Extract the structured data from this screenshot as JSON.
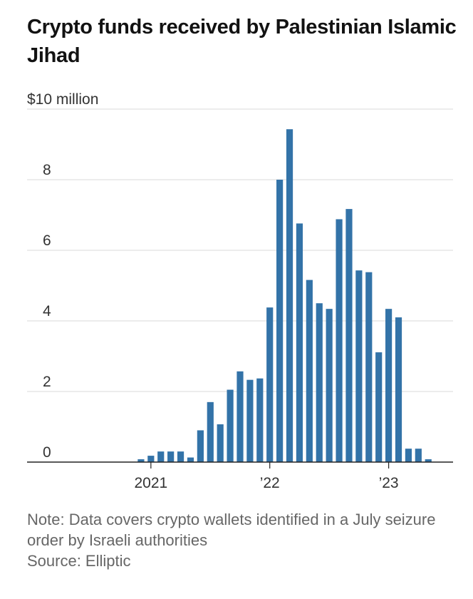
{
  "title": "Crypto funds received by Palestinian Islamic Jihad",
  "note": "Note: Data covers crypto wallets identified in a July seizure order by Israeli authorities",
  "source": "Source: Elliptic",
  "colors": {
    "bar": "#3373a8",
    "grid": "#d9d9d9",
    "axis": "#222222"
  },
  "chart_data": {
    "type": "bar",
    "title": "Crypto funds received by Palestinian Islamic Jihad",
    "ylabel": "",
    "y_unit": "$ million",
    "ylim": [
      0,
      10
    ],
    "y_ticks": [
      {
        "value": 10,
        "label": "$10 million"
      },
      {
        "value": 8,
        "label": "8"
      },
      {
        "value": 6,
        "label": "6"
      },
      {
        "value": 4,
        "label": "4"
      },
      {
        "value": 2,
        "label": "2"
      },
      {
        "value": 0,
        "label": "0"
      }
    ],
    "x_ticks": [
      {
        "date": "2021-01",
        "label": "2021"
      },
      {
        "date": "2022-01",
        "label": "’22"
      },
      {
        "date": "2023-01",
        "label": "’23"
      }
    ],
    "xlim": [
      "2020-01",
      "2023-07"
    ],
    "grid": true,
    "frequency": "monthly",
    "categories": [
      "2020-12",
      "2021-01",
      "2021-02",
      "2021-03",
      "2021-04",
      "2021-05",
      "2021-06",
      "2021-07",
      "2021-08",
      "2021-09",
      "2021-10",
      "2021-11",
      "2021-12",
      "2022-01",
      "2022-02",
      "2022-03",
      "2022-04",
      "2022-05",
      "2022-06",
      "2022-07",
      "2022-08",
      "2022-09",
      "2022-10",
      "2022-11",
      "2022-12",
      "2023-01",
      "2023-02",
      "2023-03",
      "2023-04",
      "2023-05",
      "2023-06",
      "2023-07"
    ],
    "values": [
      0.08,
      0.18,
      0.3,
      0.3,
      0.3,
      0.13,
      0.9,
      1.7,
      1.07,
      2.05,
      2.57,
      2.33,
      2.37,
      4.38,
      8,
      9.43,
      6.76,
      5.16,
      4.5,
      4.34,
      6.88,
      7.17,
      5.43,
      5.38,
      3.11,
      4.34,
      4.1,
      0.38,
      0.38,
      0.08,
      0,
      0
    ]
  }
}
